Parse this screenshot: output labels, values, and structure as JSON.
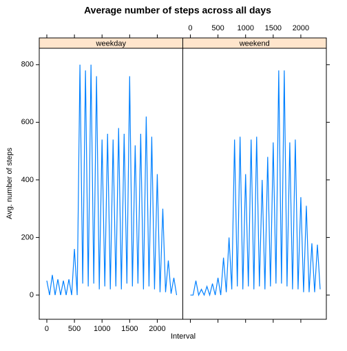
{
  "chart_data": {
    "type": "line",
    "title": "Average number of steps across all days",
    "xlabel": "Interval",
    "ylabel": "Avg. number of steps",
    "xlim": [
      -137,
      2462
    ],
    "ylim": [
      -84,
      857
    ],
    "xticks": [
      0,
      500,
      1000,
      1500,
      2000
    ],
    "yticks": [
      0,
      200,
      400,
      600,
      800
    ],
    "x": [
      0,
      50,
      100,
      150,
      200,
      250,
      300,
      350,
      400,
      450,
      500,
      550,
      600,
      650,
      700,
      750,
      800,
      850,
      900,
      950,
      1000,
      1050,
      1100,
      1150,
      1200,
      1250,
      1300,
      1350,
      1400,
      1450,
      1500,
      1550,
      1600,
      1650,
      1700,
      1750,
      1800,
      1850,
      1900,
      1950,
      2000,
      2050,
      2100,
      2150,
      2200,
      2250,
      2300,
      2350
    ],
    "series": [
      {
        "name": "weekday",
        "color": "#0080ff",
        "values": [
          50,
          0,
          70,
          0,
          55,
          0,
          50,
          0,
          55,
          0,
          160,
          0,
          800,
          40,
          780,
          30,
          800,
          40,
          760,
          20,
          540,
          30,
          560,
          20,
          540,
          30,
          580,
          20,
          560,
          40,
          760,
          30,
          520,
          40,
          560,
          20,
          620,
          30,
          550,
          20,
          420,
          10,
          300,
          10,
          120,
          5,
          60,
          0
        ]
      },
      {
        "name": "weekend",
        "color": "#0080ff",
        "values": [
          0,
          0,
          50,
          0,
          20,
          0,
          30,
          0,
          40,
          0,
          60,
          0,
          130,
          10,
          200,
          20,
          540,
          30,
          550,
          20,
          420,
          30,
          540,
          20,
          550,
          30,
          400,
          20,
          480,
          30,
          530,
          40,
          780,
          40,
          780,
          30,
          530,
          20,
          540,
          20,
          340,
          10,
          310,
          10,
          180,
          10,
          175,
          20
        ]
      }
    ]
  }
}
